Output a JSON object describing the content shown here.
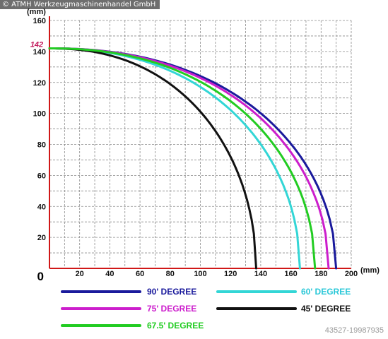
{
  "watermark": "© ATMH Werkzeugmaschinenhandel GmbH",
  "image_id": "43527-19987935",
  "chart_data": {
    "type": "line",
    "title": "",
    "xlabel": "(mm)",
    "ylabel": "(mm)",
    "xlim": [
      0,
      200
    ],
    "ylim": [
      0,
      160
    ],
    "x_ticks": [
      "0",
      "20",
      "40",
      "60",
      "80",
      "100",
      "120",
      "140",
      "160",
      "180",
      "200"
    ],
    "y_ticks": [
      "20",
      "40",
      "60",
      "80",
      "100",
      "120",
      "140",
      "160"
    ],
    "grid": true,
    "legend_position": "bottom",
    "annotation": {
      "text": "142",
      "y": 142,
      "color": "#c2185b"
    },
    "series": [
      {
        "name": "90' DEGREE",
        "color": "#1a1a9c",
        "peak": 142,
        "end_x": 190
      },
      {
        "name": "60' DEGREE",
        "color": "#33d6d6",
        "peak": 142,
        "end_x": 166
      },
      {
        "name": "75' DEGREE",
        "color": "#cc1ecc",
        "peak": 142,
        "end_x": 185
      },
      {
        "name": "45' DEGREE",
        "color": "#111111",
        "peak": 142,
        "end_x": 137
      },
      {
        "name": "67.5' DEGREE",
        "color": "#22cc22",
        "peak": 142,
        "end_x": 176
      }
    ]
  }
}
